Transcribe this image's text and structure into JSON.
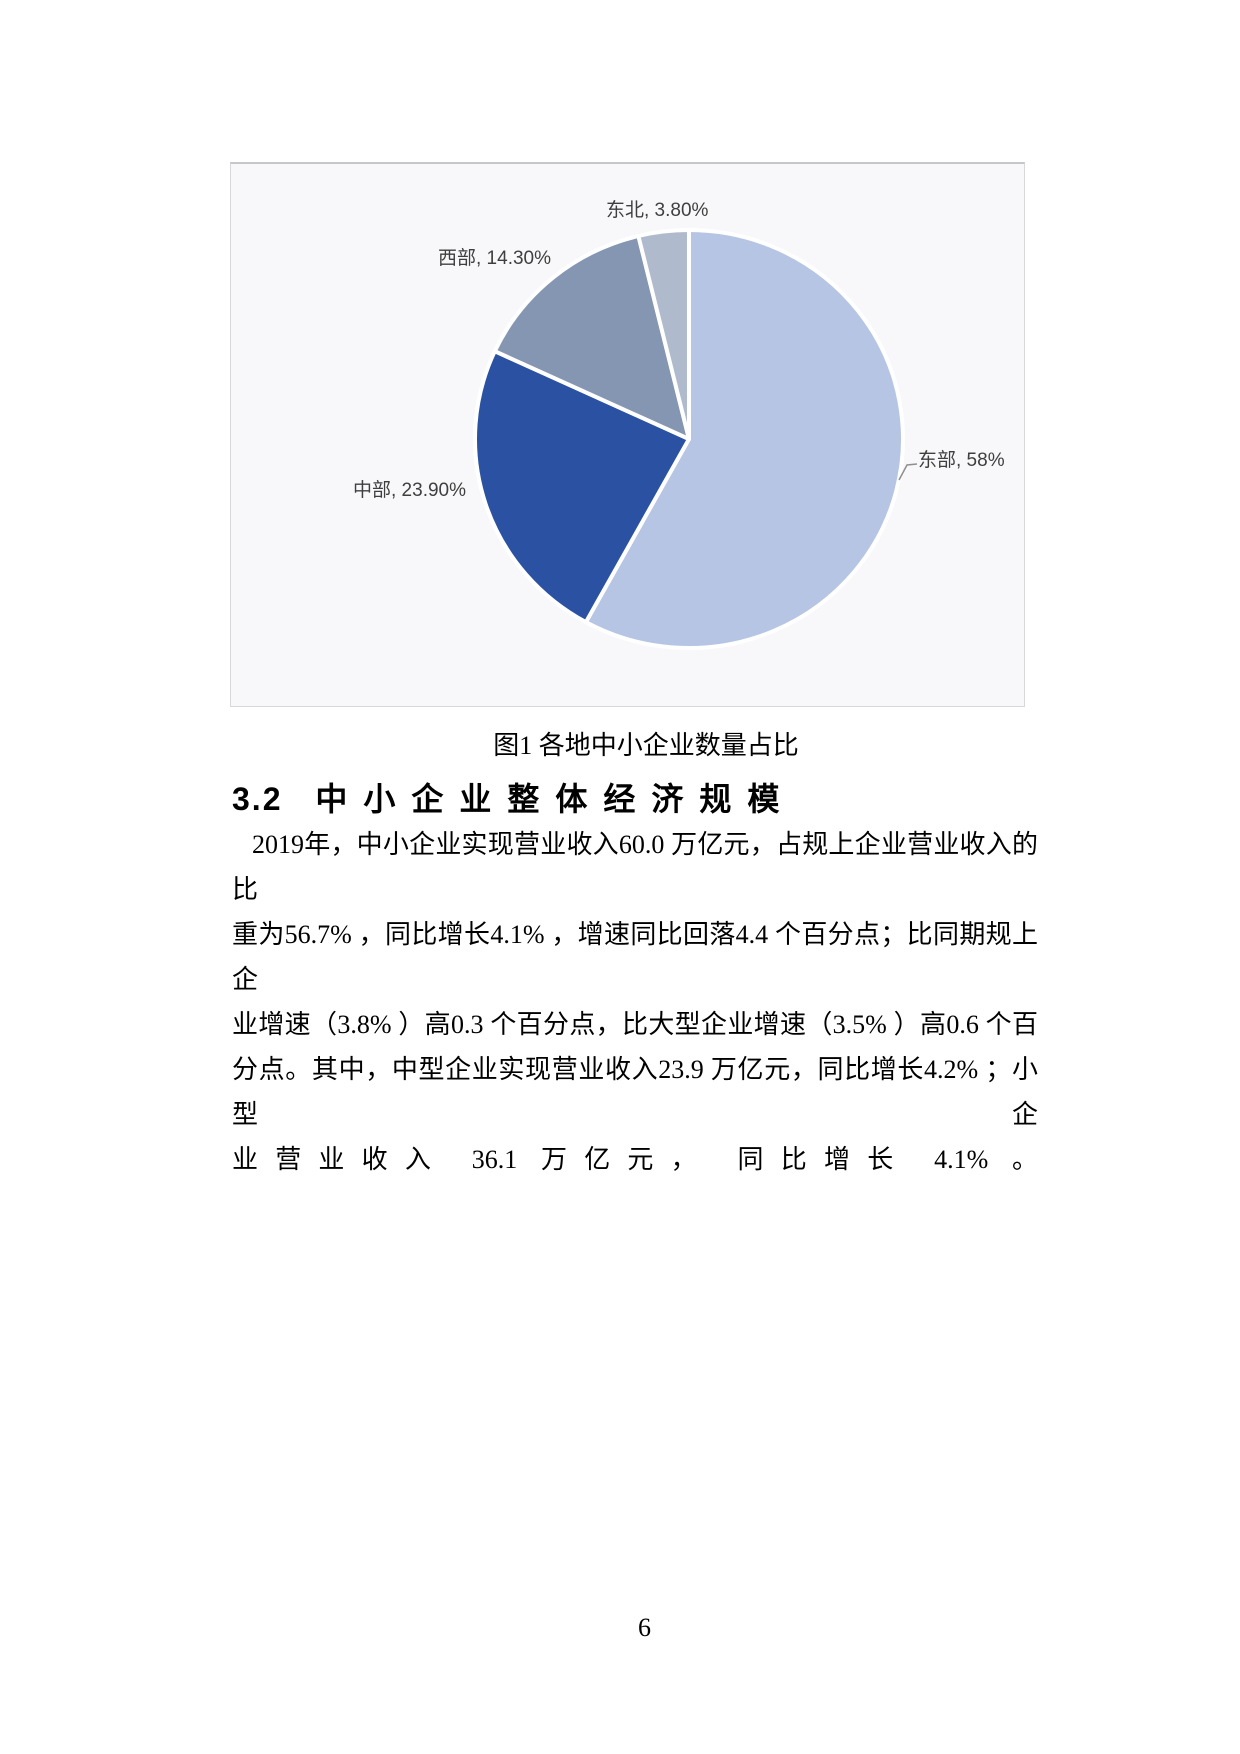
{
  "figure": {
    "caption": "图1 各地中小企业数量占比"
  },
  "chart_data": {
    "type": "pie",
    "title": "图1 各地中小企业数量占比",
    "direction": "clockwise",
    "start_angle_deg": 0,
    "label_position": "outside",
    "legend": "none",
    "background": "#f8f8fa",
    "slices": [
      {
        "label": "东部",
        "value": 58,
        "display": "东部, 58%",
        "color": "#b6c5e3"
      },
      {
        "label": "中部",
        "value": 23.9,
        "display": "中部, 23.90%",
        "color": "#2b52a2"
      },
      {
        "label": "西部",
        "value": 14.3,
        "display": "西部, 14.30%",
        "color": "#8496b1"
      },
      {
        "label": "东北",
        "value": 3.8,
        "display": "东北, 3.80%",
        "color": "#afbacc"
      }
    ]
  },
  "section": {
    "number": "3.2",
    "title": "中小企业整体经济规模"
  },
  "paragraph": {
    "lines": [
      "2019年，中小企业实现营业收入60.0 万亿元，占规上企业营业收入的比",
      "重为56.7% ，同比增长4.1% ，增速同比回落4.4 个百分点；比同期规上企",
      "业增速（3.8% ）高0.3 个百分点，比大型企业增速（3.5% ）高0.6 个百",
      "分点。其中，中型企业实现营业收入23.9 万亿元，同比增长4.2% ；小型企",
      "业营业收入 36.1 万亿元， 同比增长 4.1% 。"
    ]
  },
  "page": {
    "number": "6"
  }
}
